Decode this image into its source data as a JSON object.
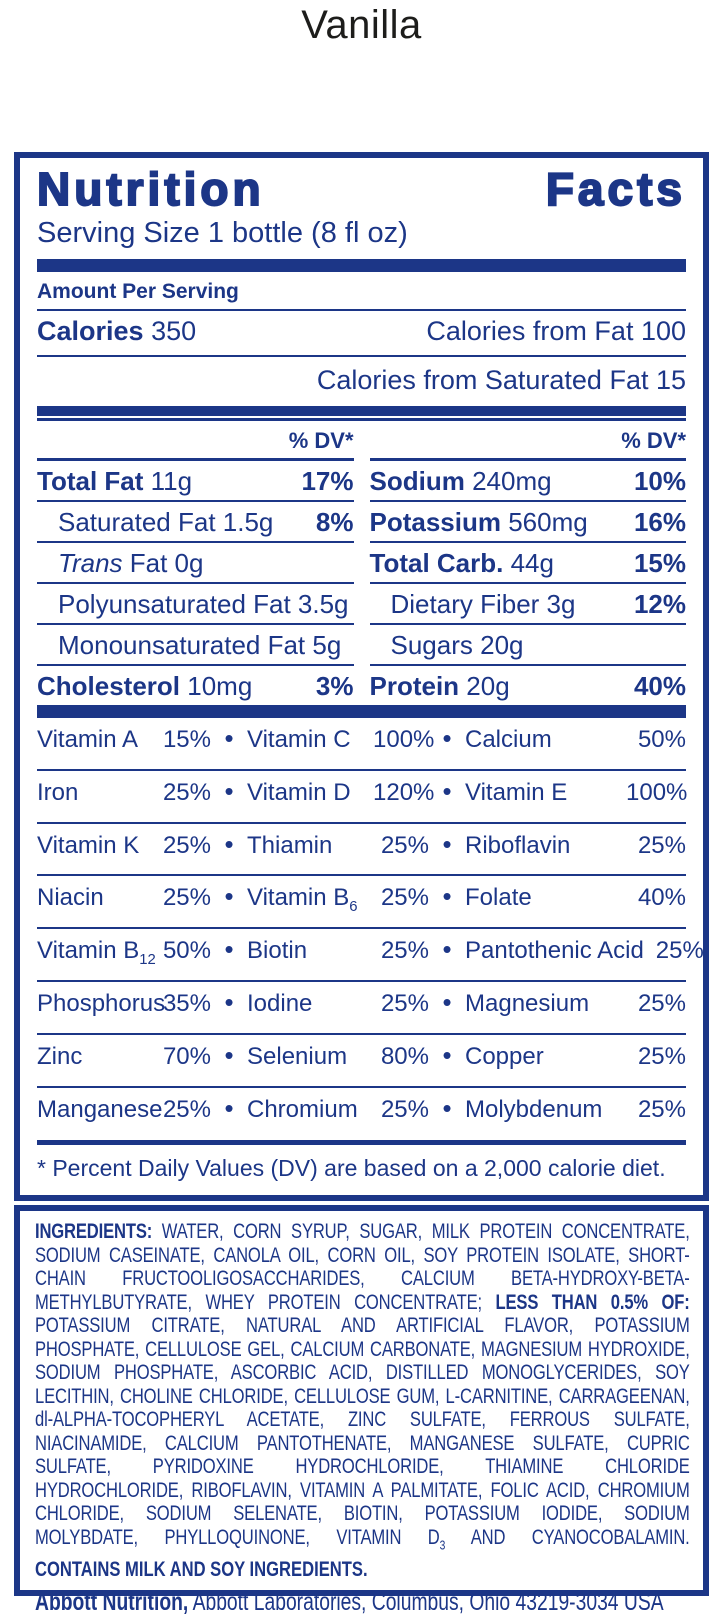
{
  "title": "Vanilla",
  "colors": {
    "navy": "#1c3687",
    "title_black": "#1d1d1b"
  },
  "symbols": {
    "bullet": "•"
  },
  "panel": {
    "header_word1": "Nutrition",
    "header_word2": "Facts",
    "serving_size": "Serving Size 1 bottle (8 fl oz)",
    "amount_per_serving": "Amount Per Serving",
    "calories_label": "Calories",
    "calories_value": " 350",
    "calories_from_fat": "Calories from Fat 100",
    "calories_from_saturated_fat": "Calories from Saturated Fat 15",
    "dv_header": "% DV*",
    "footnote": "* Percent Daily Values (DV) are based on a 2,000 calorie diet."
  },
  "nutrients": {
    "left": [
      {
        "bold": "Total Fat",
        "italic": "",
        "rest": " 11g",
        "pct": "17%"
      },
      {
        "bold": "",
        "italic": "",
        "rest": "Saturated Fat 1.5g",
        "pct": "8%"
      },
      {
        "bold": "",
        "italic": "Trans",
        "rest": " Fat 0g",
        "pct": ""
      },
      {
        "bold": "",
        "italic": "",
        "rest": "Polyunsaturated Fat 3.5g",
        "pct": ""
      },
      {
        "bold": "",
        "italic": "",
        "rest": "Monounsaturated Fat 5g",
        "pct": ""
      },
      {
        "bold": "Cholesterol",
        "italic": "",
        "rest": " 10mg",
        "pct": "3%"
      }
    ],
    "right": [
      {
        "bold": "Sodium",
        "italic": "",
        "rest": " 240mg",
        "pct": "10%"
      },
      {
        "bold": "Potassium",
        "italic": "",
        "rest": " 560mg",
        "pct": "16%"
      },
      {
        "bold": "Total Carb.",
        "italic": "",
        "rest": " 44g",
        "pct": "15%"
      },
      {
        "bold": "",
        "italic": "",
        "rest": "Dietary Fiber 3g",
        "pct": "12%"
      },
      {
        "bold": "",
        "italic": "",
        "rest": "Sugars 20g",
        "pct": ""
      },
      {
        "bold": "Protein",
        "italic": "",
        "rest": " 20g",
        "pct": "40%"
      }
    ]
  },
  "vitamins": {
    "rows": [
      {
        "cells": [
          {
            "name": "Vitamin A",
            "sub": "",
            "pct": "15%"
          },
          {
            "name": "Vitamin C",
            "sub": "",
            "pct": "100%"
          },
          {
            "name": "Calcium",
            "sub": "",
            "pct": "50%"
          }
        ]
      },
      {
        "cells": [
          {
            "name": "Iron",
            "sub": "",
            "pct": "25%"
          },
          {
            "name": "Vitamin D",
            "sub": "",
            "pct": "120%"
          },
          {
            "name": "Vitamin E",
            "sub": "",
            "pct": "100%"
          }
        ]
      },
      {
        "cells": [
          {
            "name": "Vitamin K",
            "sub": "",
            "pct": "25%"
          },
          {
            "name": "Thiamin",
            "sub": "",
            "pct": "25%"
          },
          {
            "name": "Riboflavin",
            "sub": "",
            "pct": "25%"
          }
        ]
      },
      {
        "cells": [
          {
            "name": "Niacin",
            "sub": "",
            "pct": "25%"
          },
          {
            "name": "Vitamin B",
            "sub": "6",
            "pct": "25%"
          },
          {
            "name": "Folate",
            "sub": "",
            "pct": "40%"
          }
        ]
      },
      {
        "cells": [
          {
            "name": "Vitamin B",
            "sub": "12",
            "pct": "50%"
          },
          {
            "name": "Biotin",
            "sub": "",
            "pct": "25%"
          },
          {
            "name": "Pantothenic Acid",
            "sub": "",
            "pct": "25%"
          }
        ]
      },
      {
        "cells": [
          {
            "name": "Phosphorus",
            "sub": "",
            "pct": "35%"
          },
          {
            "name": "Iodine",
            "sub": "",
            "pct": "25%"
          },
          {
            "name": "Magnesium",
            "sub": "",
            "pct": "25%"
          }
        ]
      },
      {
        "cells": [
          {
            "name": "Zinc",
            "sub": "",
            "pct": "70%"
          },
          {
            "name": "Selenium",
            "sub": "",
            "pct": "80%"
          },
          {
            "name": "Copper",
            "sub": "",
            "pct": "25%"
          }
        ]
      },
      {
        "cells": [
          {
            "name": "Manganese",
            "sub": "",
            "pct": "25%"
          },
          {
            "name": "Chromium",
            "sub": "",
            "pct": "25%"
          },
          {
            "name": "Molybdenum",
            "sub": "",
            "pct": "25%"
          }
        ]
      }
    ]
  },
  "ingredients": {
    "label": "INGREDIENTS:",
    "part1": " WATER, CORN SYRUP, SUGAR, MILK PROTEIN CONCENTRATE, SODIUM CASEINATE, CANOLA OIL, CORN OIL, SOY PROTEIN ISOLATE, SHORT-CHAIN FRUCTOOLIGOSACCHARIDES, CALCIUM BETA-HYDROXY-BETA-METHYLBUTYRATE, WHEY PROTEIN CONCENTRATE; ",
    "less_than_label": "LESS THAN 0.5% OF:",
    "part2": " POTASSIUM CITRATE, NATURAL AND ARTIFICIAL FLAVOR, POTASSIUM PHOSPHATE, CELLULOSE GEL, CALCIUM CARBONATE, MAGNESIUM HYDROXIDE, SODIUM PHOSPHATE, ASCORBIC ACID, DISTILLED MONOGLYCERIDES, SOY LECITHIN, CHOLINE CHLORIDE, CELLULOSE GUM, L-CARNITINE, CARRAGEENAN, dl-ALPHA-TOCOPHERYL ACETATE, ZINC SULFATE, FERROUS SULFATE, NIACINAMIDE, CALCIUM PANTOTHENATE, MANGANESE SULFATE, CUPRIC SULFATE, PYRIDOXINE HYDROCHLORIDE, THIAMINE CHLORIDE HYDROCHLORIDE, RIBOFLAVIN, VITAMIN A PALMITATE, FOLIC ACID, CHROMIUM CHLORIDE, SODIUM SELENATE, BIOTIN, POTASSIUM IODIDE, SODIUM MOLYBDATE, PHYLLOQUINONE, VITAMIN D",
    "d_subscript": "3",
    "part3": " AND CYANOCOBALAMIN.",
    "contains": "CONTAINS MILK AND SOY INGREDIENTS."
  },
  "footer": {
    "brand": "Abbott Nutrition,",
    "address": " Abbott Laboratories, Columbus, Ohio 43219-3034 USA"
  }
}
